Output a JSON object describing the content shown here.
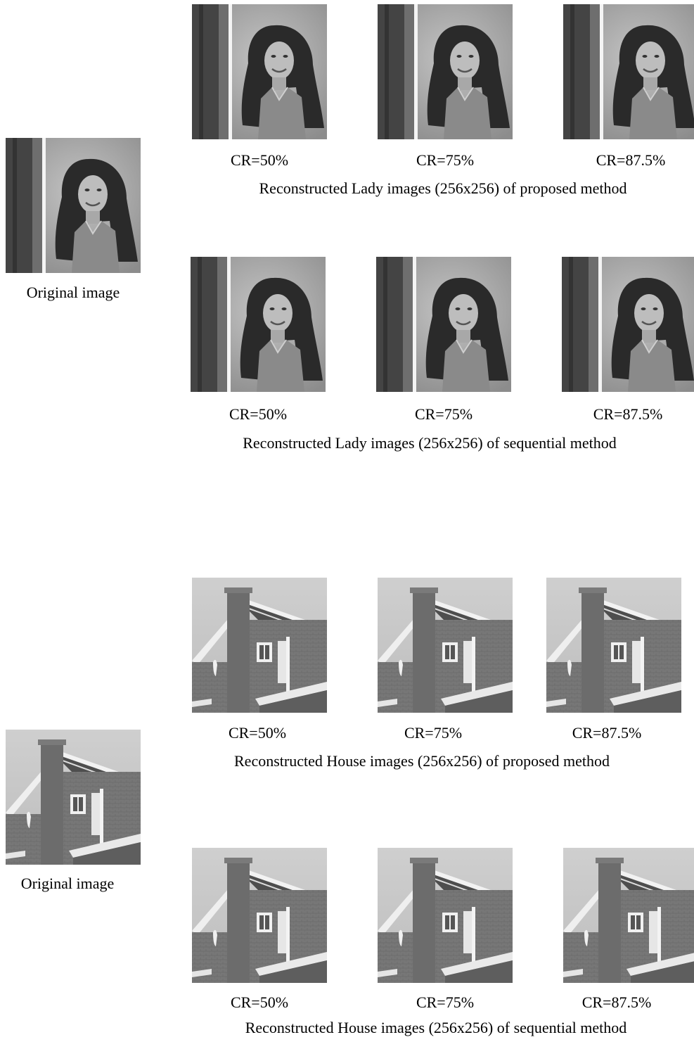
{
  "lady": {
    "original_label": "Original image",
    "proposed": {
      "caption": "Reconstructed Lady images (256x256) of proposed method",
      "ratios": [
        "CR=50%",
        "CR=75%",
        "CR=87.5%"
      ]
    },
    "sequential": {
      "caption": "Reconstructed Lady images (256x256) of sequential method",
      "ratios": [
        "CR=50%",
        "CR=75%",
        "CR=87.5%"
      ]
    }
  },
  "house": {
    "original_label": "Original image",
    "proposed": {
      "caption": "Reconstructed House images (256x256) of proposed method",
      "ratios": [
        "CR=50%",
        "CR=75%",
        "CR=87.5%"
      ]
    },
    "sequential": {
      "caption": "Reconstructed House images (256x256) of sequential method",
      "ratios": [
        "CR=50%",
        "CR=75%",
        "CR=87.5%"
      ]
    }
  }
}
